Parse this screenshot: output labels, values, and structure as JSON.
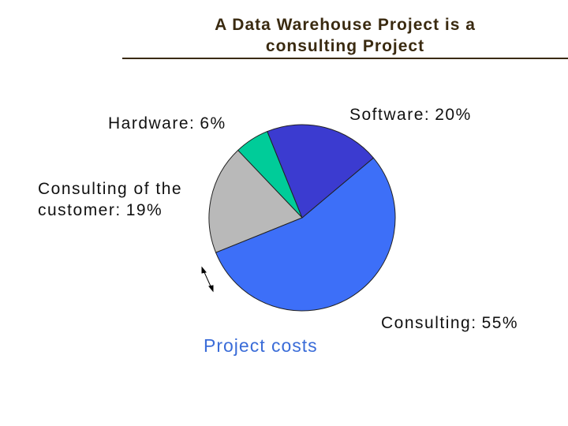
{
  "chart_data": {
    "type": "pie",
    "title": "A Data Warehouse Project is a consulting Project",
    "caption": "Project costs",
    "categories": [
      "Software:",
      "Consulting:",
      "Consulting of the customer:",
      "Hardware:"
    ],
    "values": [
      20,
      55,
      19,
      6
    ],
    "value_labels": [
      "20%",
      "55%",
      "19%",
      "6%"
    ],
    "colors": [
      "#3b3bd0",
      "#3d6ff8",
      "#b9b9b9",
      "#00cc99"
    ]
  }
}
